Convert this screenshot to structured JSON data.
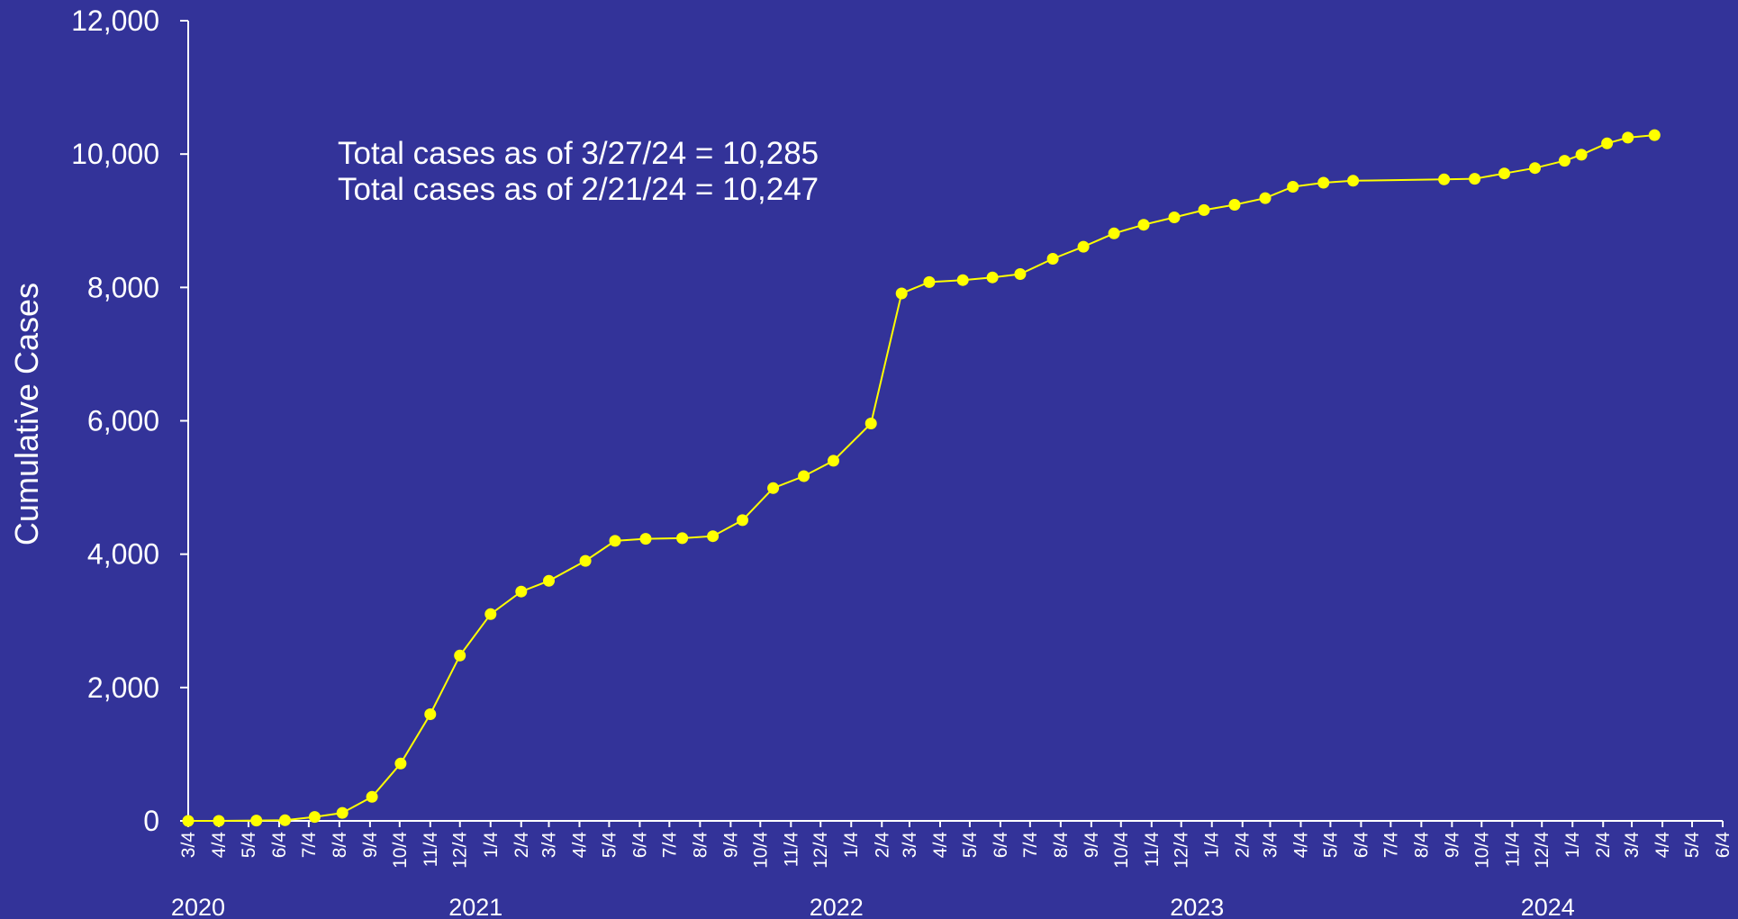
{
  "colors": {
    "background": "#333399",
    "axis": "#ffffff",
    "text": "#ffffff",
    "series": "#ffff00"
  },
  "chart_data": {
    "type": "line",
    "title": "",
    "xlabel": "",
    "ylabel": "Cumulative Cases",
    "ylim": [
      0,
      12000
    ],
    "yticks": [
      0,
      2000,
      4000,
      6000,
      8000,
      10000,
      12000
    ],
    "ytick_labels": [
      "0",
      "2,000",
      "4,000",
      "6,000",
      "8,000",
      "10,000",
      "12,000"
    ],
    "xlim": [
      "2020-03-04",
      "2024-06-04"
    ],
    "x_tick_dates": [
      "2020-03-04",
      "2020-04-04",
      "2020-05-04",
      "2020-06-04",
      "2020-07-04",
      "2020-08-04",
      "2020-09-04",
      "2020-10-04",
      "2020-11-04",
      "2020-12-04",
      "2021-01-04",
      "2021-02-04",
      "2021-03-04",
      "2021-04-04",
      "2021-05-04",
      "2021-06-04",
      "2021-07-04",
      "2021-08-04",
      "2021-09-04",
      "2021-10-04",
      "2021-11-04",
      "2021-12-04",
      "2022-01-04",
      "2022-02-04",
      "2022-03-04",
      "2022-04-04",
      "2022-05-04",
      "2022-06-04",
      "2022-07-04",
      "2022-08-04",
      "2022-09-04",
      "2022-10-04",
      "2022-11-04",
      "2022-12-04",
      "2023-01-04",
      "2023-02-04",
      "2023-03-04",
      "2023-04-04",
      "2023-05-04",
      "2023-06-04",
      "2023-07-04",
      "2023-08-04",
      "2023-09-04",
      "2023-10-04",
      "2023-11-04",
      "2023-12-04",
      "2024-01-04",
      "2024-02-04",
      "2024-03-04",
      "2024-04-04",
      "2024-05-04",
      "2024-06-04"
    ],
    "x_tick_labels": [
      "3/4",
      "4/4",
      "5/4",
      "6/4",
      "7/4",
      "8/4",
      "9/4",
      "10/4",
      "11/4",
      "12/4",
      "1/4",
      "2/4",
      "3/4",
      "4/4",
      "5/4",
      "6/4",
      "7/4",
      "8/4",
      "9/4",
      "10/4",
      "11/4",
      "12/4",
      "1/4",
      "2/4",
      "3/4",
      "4/4",
      "5/4",
      "6/4",
      "7/4",
      "8/4",
      "9/4",
      "10/4",
      "11/4",
      "12/4",
      "1/4",
      "2/4",
      "3/4",
      "4/4",
      "5/4",
      "6/4",
      "7/4",
      "8/4",
      "9/4",
      "10/4",
      "11/4",
      "12/4",
      "1/4",
      "2/4",
      "3/4",
      "4/4",
      "5/4",
      "6/4"
    ],
    "year_labels": [
      {
        "label": "2020",
        "date": "2020-03-14"
      },
      {
        "label": "2021",
        "date": "2020-12-20"
      },
      {
        "label": "2022",
        "date": "2021-12-20"
      },
      {
        "label": "2023",
        "date": "2022-12-20"
      },
      {
        "label": "2024",
        "date": "2023-12-10"
      }
    ],
    "annotations": [
      "Total cases as of 3/27/24 = 10,285",
      "Total cases as of 2/21/24 = 10,247"
    ],
    "series": [
      {
        "x": [
          "2020-03-04",
          "2020-04-04",
          "2020-05-12",
          "2020-06-10",
          "2020-07-10",
          "2020-08-07",
          "2020-09-06",
          "2020-10-05",
          "2020-11-04",
          "2020-12-04",
          "2021-01-04",
          "2021-02-04",
          "2021-03-04",
          "2021-04-10",
          "2021-05-10",
          "2021-06-10",
          "2021-07-17",
          "2021-08-17",
          "2021-09-16",
          "2021-10-17",
          "2021-11-17",
          "2021-12-17",
          "2022-01-24",
          "2022-02-24",
          "2022-03-24",
          "2022-04-27",
          "2022-05-27",
          "2022-06-24",
          "2022-07-27",
          "2022-08-27",
          "2022-09-27",
          "2022-10-27",
          "2022-11-27",
          "2022-12-27",
          "2023-01-27",
          "2023-02-27",
          "2023-03-27",
          "2023-04-27",
          "2023-05-27",
          "2023-08-27",
          "2023-09-27",
          "2023-10-27",
          "2023-11-27",
          "2023-12-27",
          "2024-01-13",
          "2024-02-08",
          "2024-02-29",
          "2024-03-27"
        ],
        "y": [
          0,
          0,
          5,
          10,
          60,
          120,
          360,
          860,
          1600,
          2480,
          3100,
          3440,
          3600,
          3900,
          4200,
          4230,
          4240,
          4270,
          4510,
          4990,
          5170,
          5400,
          5960,
          7910,
          8080,
          8110,
          8150,
          8200,
          8430,
          8610,
          8810,
          8940,
          9050,
          9160,
          9240,
          9340,
          9510,
          9570,
          9600,
          9620,
          9630,
          9710,
          9790,
          9900,
          9990,
          10160,
          10247,
          10285
        ]
      }
    ]
  }
}
